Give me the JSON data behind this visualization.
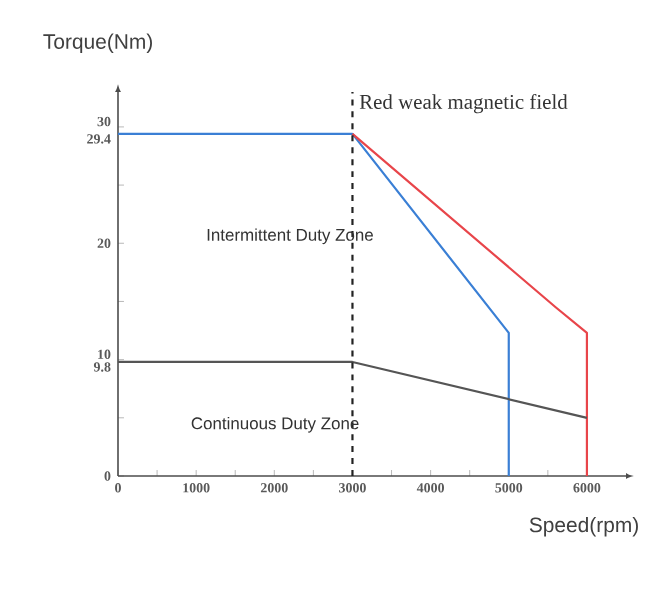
{
  "chart_data": {
    "type": "line",
    "xlabel": "Speed(rpm)",
    "ylabel": "Torque(Nm)",
    "annotations": [
      "Red weak magnetic field",
      "Intermittent Duty Zone",
      "Continuous Duty Zone"
    ],
    "series": [
      {
        "color": "#3a7fd5",
        "x": [
          0,
          3000,
          5000,
          5000
        ],
        "values": [
          29.4,
          29.4,
          12.3,
          0
        ]
      },
      {
        "color": "#e8454a",
        "x": [
          3000,
          5600,
          6000,
          6000
        ],
        "values": [
          29.4,
          14.5,
          12.3,
          0
        ]
      },
      {
        "color": "#555555",
        "x": [
          0,
          3000,
          6000
        ],
        "values": [
          9.8,
          9.8,
          5
        ]
      }
    ],
    "xlim": [
      0,
      6500
    ],
    "ylim": [
      0,
      33
    ],
    "xticks": [
      0,
      {
        "value": 500,
        "label": null
      },
      1000,
      {
        "value": 1500,
        "label": null
      },
      2000,
      {
        "value": 2500,
        "label": null
      },
      3000,
      {
        "value": 3500,
        "label": null
      },
      4000,
      {
        "value": 4500,
        "label": null
      },
      5000,
      {
        "value": 5500,
        "label": null
      },
      6000
    ],
    "yticks": [
      0,
      {
        "value": 5,
        "label": null
      },
      9.8,
      10,
      {
        "value": 15,
        "label": null
      },
      20,
      {
        "value": 25,
        "label": null
      },
      29.4,
      30
    ],
    "ref_lines": [
      {
        "axis": "x",
        "value": 3000,
        "color": "#222222",
        "line_style": "dashed"
      }
    ],
    "grid": false,
    "legend": false,
    "line_style": "solid",
    "marker": "none"
  }
}
